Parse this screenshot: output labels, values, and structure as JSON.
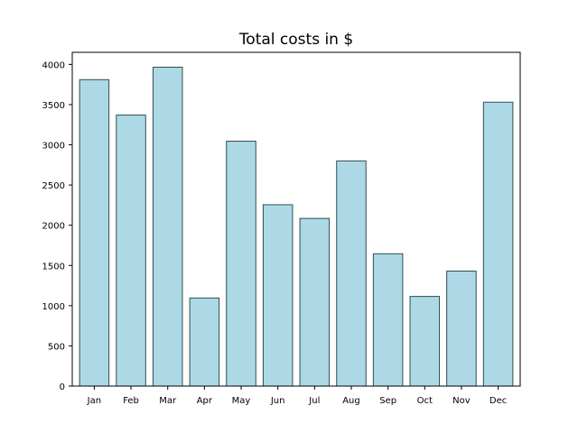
{
  "chart_data": {
    "type": "bar",
    "title": "Total costs in $",
    "xlabel": "",
    "ylabel": "",
    "categories": [
      "Jan",
      "Feb",
      "Mar",
      "Apr",
      "May",
      "Jun",
      "Jul",
      "Aug",
      "Sep",
      "Oct",
      "Nov",
      "Dec"
    ],
    "values": [
      3810,
      3370,
      3965,
      1095,
      3045,
      2255,
      2085,
      2800,
      1645,
      1115,
      1430,
      3530
    ],
    "ylim": [
      0,
      4150
    ],
    "yticks": [
      0,
      500,
      1000,
      1500,
      2000,
      2500,
      3000,
      3500,
      4000
    ],
    "grid": false,
    "legend": "none",
    "colors": {
      "bar_fill": "#add8e6",
      "bar_edge": "#2f4f4f",
      "axis": "#000000"
    }
  }
}
